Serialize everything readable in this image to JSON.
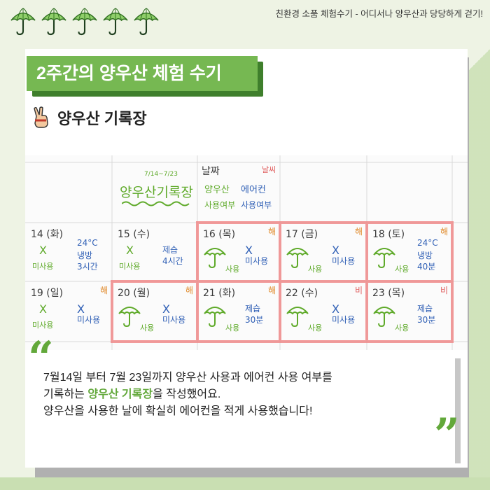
{
  "header": {
    "caption": "친환경 소품 체험수기 - 어디서나 양우산과 당당하게 걷기!",
    "umbrella_icons": [
      "umbrella-icon",
      "umbrella-icon",
      "umbrella-icon",
      "umbrella-icon",
      "umbrella-icon"
    ]
  },
  "title": "2주간의 양우산 체험 수기",
  "subtitle": "양우산 기록장",
  "calendar": {
    "header_cell": {
      "range": "7/14~7/23",
      "title": "양우산기록장"
    },
    "legend_cell": {
      "date_label": "날짜",
      "weather_label": "날씨",
      "col1": [
        "양우산",
        "사용여부"
      ],
      "col2": [
        "에어컨",
        "사용여부"
      ]
    },
    "days": [
      {
        "date": "14 (화)",
        "weather": "",
        "umbrella": "X",
        "umbrella_text": "미사용",
        "ac_lines": [
          "24°C",
          "냉방",
          "3시간"
        ]
      },
      {
        "date": "15 (수)",
        "weather": "",
        "umbrella": "X",
        "umbrella_text": "미사용",
        "ac_lines": [
          "제습",
          "4시간"
        ]
      },
      {
        "date": "16 (목)",
        "weather": "해",
        "umbrella": "umbrella",
        "umbrella_text": "사용",
        "ac_lines": [
          "X",
          "미사용"
        ]
      },
      {
        "date": "17 (금)",
        "weather": "해",
        "umbrella": "umbrella",
        "umbrella_text": "사용",
        "ac_lines": [
          "X",
          "미사용"
        ]
      },
      {
        "date": "18 (토)",
        "weather": "해",
        "umbrella": "umbrella",
        "umbrella_text": "사용",
        "ac_lines": [
          "24°C",
          "냉방",
          "40분"
        ]
      },
      {
        "date": "19 (일)",
        "weather": "해",
        "umbrella": "X",
        "umbrella_text": "미사용",
        "ac_lines": [
          "X",
          "미사용"
        ]
      },
      {
        "date": "20 (월)",
        "weather": "해",
        "umbrella": "umbrella",
        "umbrella_text": "사용",
        "ac_lines": [
          "X",
          "미사용"
        ]
      },
      {
        "date": "21 (화)",
        "weather": "해",
        "umbrella": "umbrella",
        "umbrella_text": "사용",
        "ac_lines": [
          "제습",
          "30분"
        ]
      },
      {
        "date": "22 (수)",
        "weather": "비",
        "umbrella": "umbrella",
        "umbrella_text": "사용",
        "ac_lines": [
          "X",
          "미사용"
        ]
      },
      {
        "date": "23 (목)",
        "weather": "비",
        "umbrella": "umbrella",
        "umbrella_text": "사용",
        "ac_lines": [
          "제습",
          "30분"
        ]
      }
    ]
  },
  "body": {
    "line1": "7월14일 부터 7월 23일까지 양우산 사용과 에어컨 사용 여부를",
    "line2_prefix": "기록하는 ",
    "line2_highlight": "양우산 기록장",
    "line2_suffix": "을 작성했어요.",
    "line3": "양우산을 사용한 날에 확실히 에어컨을 적게 사용했습니다!"
  },
  "colors": {
    "accent": "#76b852",
    "title_shadow": "#3f7f2c",
    "highlight_border": "#f08a8a"
  }
}
